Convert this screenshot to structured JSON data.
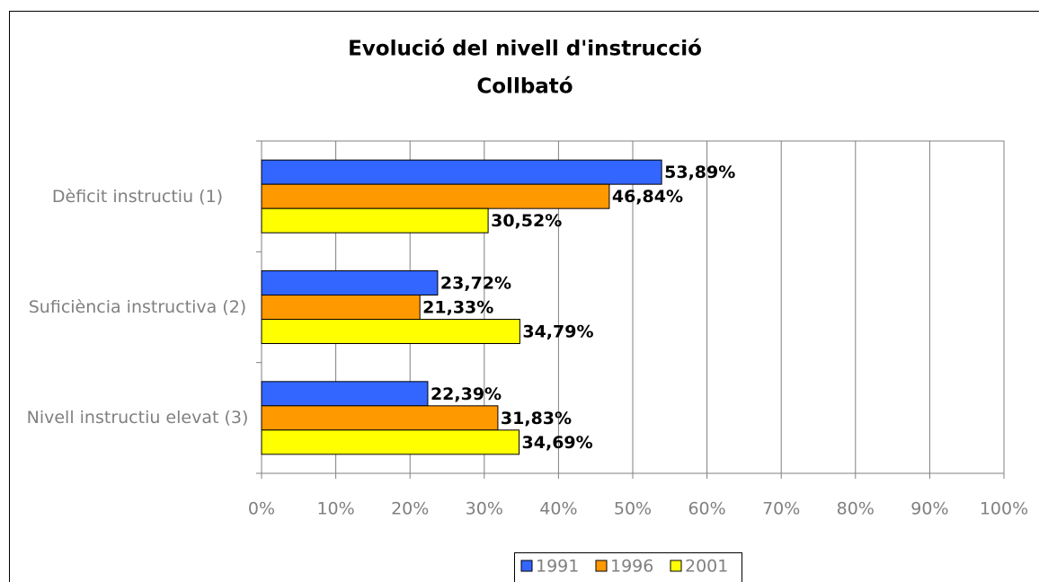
{
  "chart_data": {
    "type": "hbar",
    "title": "Evolució del nivell d'instrucció",
    "subtitle": "Collbató",
    "categories": [
      "Dèficit instructiu (1)",
      "Suficiència instructiva (2)",
      "Nivell instructiu elevat (3)"
    ],
    "series": [
      {
        "name": "1991",
        "color": "#3366ff",
        "values": [
          53.89,
          23.72,
          22.39
        ],
        "value_labels": [
          "53,89%",
          "23,72%",
          "22,39%"
        ]
      },
      {
        "name": "1996",
        "color": "#ff9900",
        "values": [
          46.84,
          21.33,
          31.83
        ],
        "value_labels": [
          "46,84%",
          "21,33%",
          "31,83%"
        ]
      },
      {
        "name": "2001",
        "color": "#ffff00",
        "values": [
          30.52,
          34.79,
          34.69
        ],
        "value_labels": [
          "30,52%",
          "34,79%",
          "34,69%"
        ]
      }
    ],
    "xlim": [
      0,
      100
    ],
    "xticks": [
      {
        "value": 0,
        "label": "0%"
      },
      {
        "value": 10,
        "label": "10%"
      },
      {
        "value": 20,
        "label": "20%"
      },
      {
        "value": 30,
        "label": "30%"
      },
      {
        "value": 40,
        "label": "40%"
      },
      {
        "value": 50,
        "label": "50%"
      },
      {
        "value": 60,
        "label": "60%"
      },
      {
        "value": 70,
        "label": "70%"
      },
      {
        "value": 80,
        "label": "80%"
      },
      {
        "value": 90,
        "label": "90%"
      },
      {
        "value": 100,
        "label": "100%"
      }
    ],
    "grid": true,
    "legend": "bottom"
  }
}
